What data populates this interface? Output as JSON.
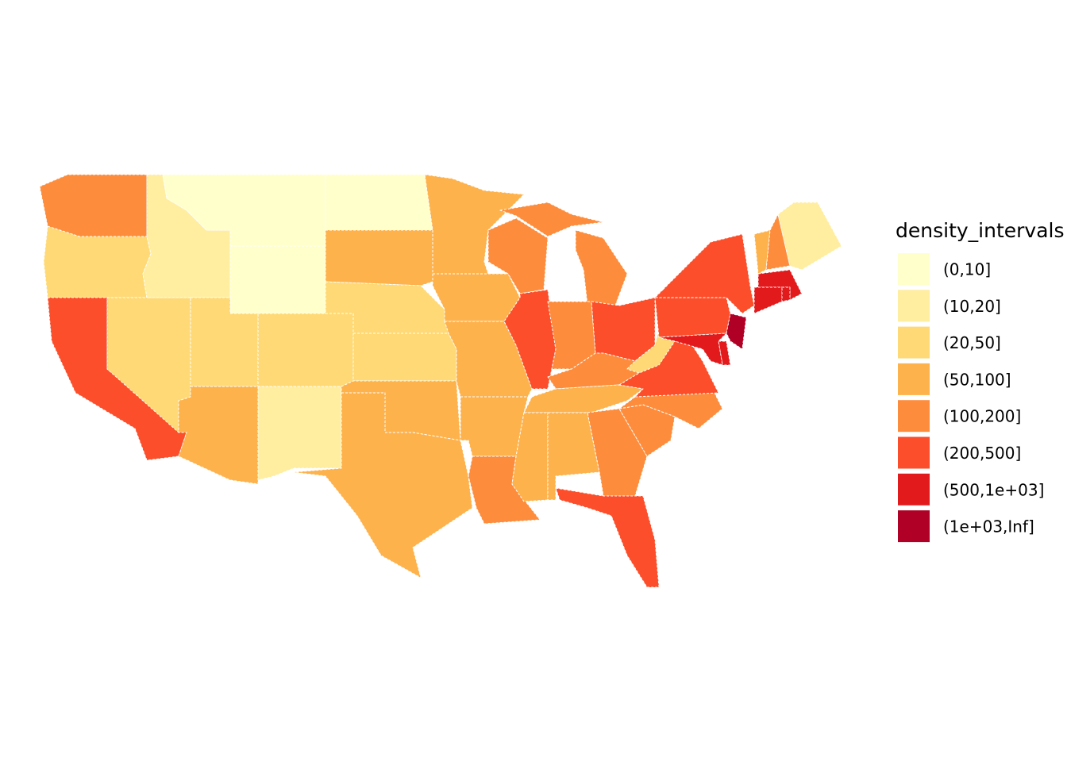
{
  "legend": {
    "title": "density_intervals",
    "items": [
      {
        "label": "(0,10]",
        "color": "#FFFFCC"
      },
      {
        "label": "(10,20]",
        "color": "#FFEDA0"
      },
      {
        "label": "(20,50]",
        "color": "#FED976"
      },
      {
        "label": "(50,100]",
        "color": "#FEB24C"
      },
      {
        "label": "(100,200]",
        "color": "#FD8D3C"
      },
      {
        "label": "(200,500]",
        "color": "#FC4E2A"
      },
      {
        "label": "(500,1e+03]",
        "color": "#E31A1C"
      },
      {
        "label": "(1e+03,Inf]",
        "color": "#B10026"
      }
    ]
  },
  "regions": [
    4,
    2,
    5,
    2,
    1,
    0,
    0,
    2,
    3,
    2,
    1,
    0,
    3,
    2,
    2,
    3,
    3,
    3,
    3,
    3,
    3,
    4,
    4,
    5,
    4,
    4,
    5,
    4,
    3,
    3,
    3,
    4,
    5,
    4,
    4,
    5,
    2,
    5,
    5,
    7,
    6,
    6,
    3,
    4,
    1,
    6,
    6,
    6
  ]
}
